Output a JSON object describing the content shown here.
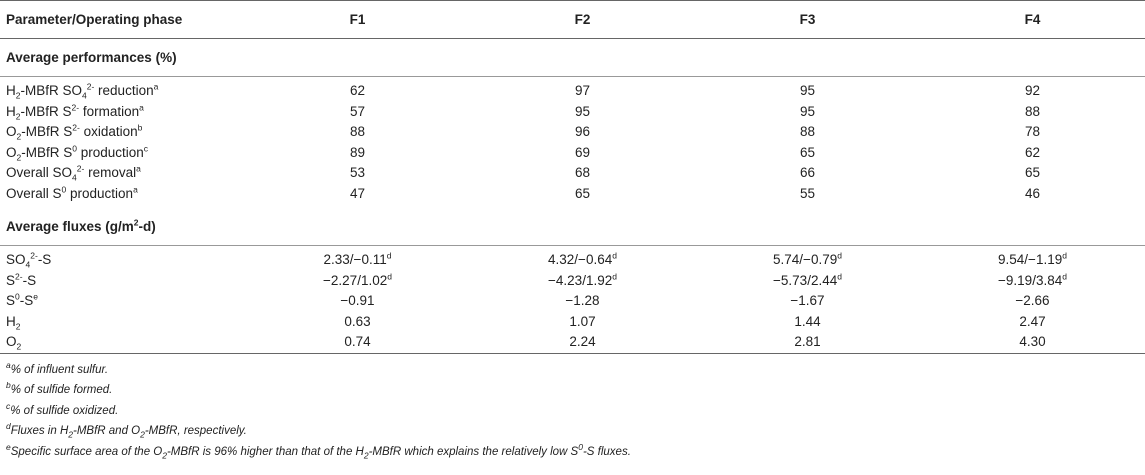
{
  "header": {
    "param": "Parameter/Operating phase",
    "phases": [
      "F1",
      "F2",
      "F3",
      "F4"
    ]
  },
  "performance": {
    "title": "Average performances (%)",
    "rows": [
      {
        "label_html": "H<sub>2</sub>-MBfR SO<sub>4</sub><sup>2-</sup> reduction<sup>a</sup>",
        "values": [
          "62",
          "97",
          "95",
          "92"
        ]
      },
      {
        "label_html": "H<sub>2</sub>-MBfR S<sup>2-</sup> formation<sup>a</sup>",
        "values": [
          "57",
          "95",
          "95",
          "88"
        ]
      },
      {
        "label_html": "O<sub>2</sub>-MBfR S<sup>2-</sup> oxidation<sup>b</sup>",
        "values": [
          "88",
          "96",
          "88",
          "78"
        ]
      },
      {
        "label_html": "O<sub>2</sub>-MBfR S<sup>0</sup> production<sup>c</sup>",
        "values": [
          "89",
          "69",
          "65",
          "62"
        ]
      },
      {
        "label_html": "Overall SO<sub>4</sub><sup>2-</sup> removal<sup>a</sup>",
        "values": [
          "53",
          "68",
          "66",
          "65"
        ]
      },
      {
        "label_html": "Overall S<sup>0</sup> production<sup>a</sup>",
        "values": [
          "47",
          "65",
          "55",
          "46"
        ]
      }
    ]
  },
  "fluxes": {
    "title_html": "Average fluxes (g/m<sup>2</sup>-d)",
    "rows": [
      {
        "label_html": "SO<sub>4</sub><sup>2-</sup>-S",
        "values": [
          "2.33/−0.11",
          "4.32/−0.64",
          "5.74/−0.79",
          "9.54/−1.19"
        ],
        "sup": "d"
      },
      {
        "label_html": "S<sup>2-</sup>-S",
        "values": [
          "−2.27/1.02",
          "−4.23/1.92",
          "−5.73/2.44",
          "−9.19/3.84"
        ],
        "sup": "d"
      },
      {
        "label_html": "S<sup>0</sup>-S<sup>e</sup>",
        "values": [
          "−0.91",
          "−1.28",
          "−1.67",
          "−2.66"
        ],
        "sup": ""
      },
      {
        "label_html": "H<sub>2</sub>",
        "values": [
          "0.63",
          "1.07",
          "1.44",
          "2.47"
        ],
        "sup": ""
      },
      {
        "label_html": "O<sub>2</sub>",
        "values": [
          "0.74",
          "2.24",
          "2.81",
          "4.30"
        ],
        "sup": ""
      }
    ]
  },
  "footnotes": [
    {
      "mark": "a",
      "text": "% of influent sulfur."
    },
    {
      "mark": "b",
      "text": "% of sulfide formed."
    },
    {
      "mark": "c",
      "text": "% of sulfide oxidized."
    },
    {
      "mark": "d",
      "text_html": "Fluxes in H<sub>2</sub>-MBfR and O<sub>2</sub>-MBfR, respectively."
    },
    {
      "mark": "e",
      "text_html": "Specific surface area of the O<sub>2</sub>-MBfR is 96% higher than that of the H<sub>2</sub>-MBfR which explains the relatively low S<sup>0</sup>-S fluxes."
    }
  ]
}
